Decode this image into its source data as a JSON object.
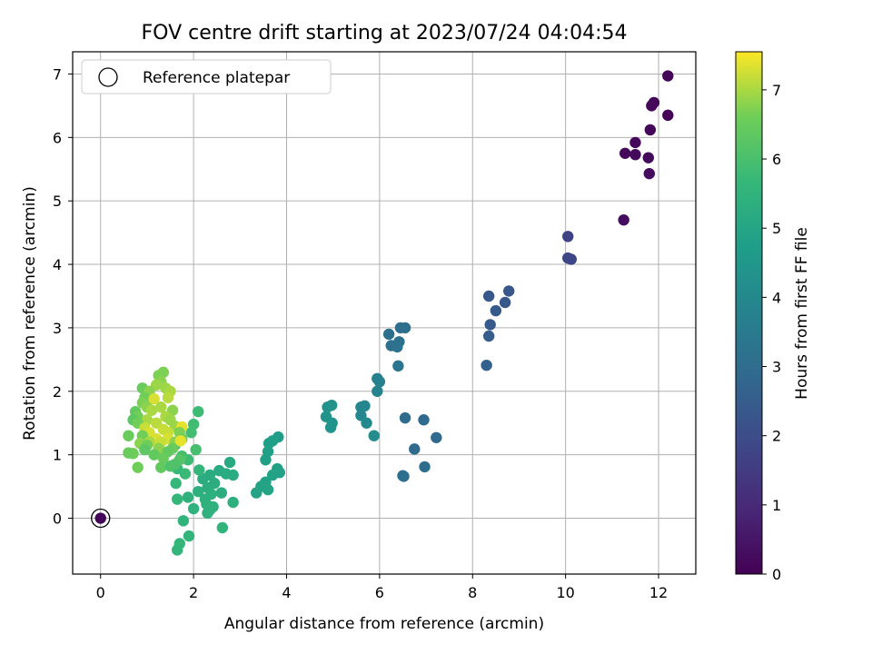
{
  "chart_data": {
    "type": "scatter",
    "title": "FOV centre drift starting at 2023/07/24 04:04:54",
    "xlabel": "Angular distance from reference (arcmin)",
    "ylabel": "Rotation from reference (arcmin)",
    "xlim": [
      -0.6,
      12.8
    ],
    "ylim": [
      -0.88,
      7.35
    ],
    "xticks": [
      0,
      2,
      4,
      6,
      8,
      10,
      12
    ],
    "yticks": [
      0,
      1,
      2,
      3,
      4,
      5,
      6,
      7
    ],
    "grid": true,
    "legend": {
      "placement": "upper-left",
      "label": "Reference platepar"
    },
    "colorbar": {
      "label": "Hours from first FF file",
      "colormap": "viridis",
      "range": [
        0,
        7.55
      ],
      "ticks": [
        0,
        1,
        2,
        3,
        4,
        5,
        6,
        7
      ]
    },
    "reference_point": {
      "x": 0,
      "y": 0,
      "t": 0.1
    },
    "points": [
      [
        12.2,
        6.97,
        0.1
      ],
      [
        11.9,
        6.55,
        0.1
      ],
      [
        11.85,
        6.5,
        0.15
      ],
      [
        12.2,
        6.35,
        0.1
      ],
      [
        11.82,
        6.12,
        0.15
      ],
      [
        11.5,
        5.92,
        0.2
      ],
      [
        11.28,
        5.75,
        0.2
      ],
      [
        11.5,
        5.73,
        0.2
      ],
      [
        11.78,
        5.68,
        0.2
      ],
      [
        11.8,
        5.43,
        0.25
      ],
      [
        11.25,
        4.7,
        0.3
      ],
      [
        10.05,
        4.44,
        1.7
      ],
      [
        10.05,
        4.1,
        1.8
      ],
      [
        10.12,
        4.08,
        1.8
      ],
      [
        8.78,
        3.58,
        2.3
      ],
      [
        8.35,
        3.5,
        2.35
      ],
      [
        8.7,
        3.4,
        2.35
      ],
      [
        8.5,
        3.27,
        2.4
      ],
      [
        8.38,
        3.05,
        2.4
      ],
      [
        8.35,
        2.87,
        2.5
      ],
      [
        8.3,
        2.41,
        2.6
      ],
      [
        6.45,
        3.0,
        3.05
      ],
      [
        6.55,
        3.0,
        3.1
      ],
      [
        6.2,
        2.9,
        3.1
      ],
      [
        6.42,
        2.78,
        3.15
      ],
      [
        6.25,
        2.72,
        3.15
      ],
      [
        6.38,
        2.7,
        3.2
      ],
      [
        6.4,
        2.4,
        3.3
      ],
      [
        6.55,
        1.58,
        3.0
      ],
      [
        6.95,
        1.55,
        2.9
      ],
      [
        7.22,
        1.27,
        2.9
      ],
      [
        6.75,
        1.09,
        2.95
      ],
      [
        6.97,
        0.81,
        3.0
      ],
      [
        6.5,
        0.67,
        3.05
      ],
      [
        6.52,
        0.66,
        3.05
      ],
      [
        5.95,
        2.2,
        3.7
      ],
      [
        6.0,
        2.15,
        3.75
      ],
      [
        5.95,
        2.0,
        3.8
      ],
      [
        5.6,
        1.75,
        3.9
      ],
      [
        5.68,
        1.77,
        3.9
      ],
      [
        5.6,
        1.62,
        3.95
      ],
      [
        5.72,
        1.5,
        4.0
      ],
      [
        5.88,
        1.3,
        4.1
      ],
      [
        4.97,
        1.78,
        4.3
      ],
      [
        4.88,
        1.75,
        4.3
      ],
      [
        4.85,
        1.6,
        4.35
      ],
      [
        4.98,
        1.5,
        4.4
      ],
      [
        4.95,
        1.43,
        4.4
      ],
      [
        3.82,
        1.28,
        4.7
      ],
      [
        3.7,
        1.22,
        4.75
      ],
      [
        3.62,
        1.18,
        4.75
      ],
      [
        3.6,
        1.05,
        4.8
      ],
      [
        3.55,
        0.92,
        4.8
      ],
      [
        3.8,
        0.78,
        4.85
      ],
      [
        3.85,
        0.72,
        4.85
      ],
      [
        3.7,
        0.68,
        4.9
      ],
      [
        3.55,
        0.57,
        4.9
      ],
      [
        3.45,
        0.5,
        4.9
      ],
      [
        3.6,
        0.45,
        4.95
      ],
      [
        3.35,
        0.4,
        4.95
      ],
      [
        2.78,
        0.88,
        5.15
      ],
      [
        2.55,
        0.75,
        5.2
      ],
      [
        2.7,
        0.7,
        5.2
      ],
      [
        2.85,
        0.68,
        5.2
      ],
      [
        2.35,
        0.68,
        5.25
      ],
      [
        2.2,
        0.62,
        5.25
      ],
      [
        2.45,
        0.55,
        5.3
      ],
      [
        2.3,
        0.48,
        5.3
      ],
      [
        2.6,
        0.4,
        5.3
      ],
      [
        2.1,
        0.42,
        5.35
      ],
      [
        2.38,
        0.38,
        5.35
      ],
      [
        2.25,
        0.3,
        5.35
      ],
      [
        1.88,
        0.33,
        5.4
      ],
      [
        2.28,
        0.22,
        5.4
      ],
      [
        2.42,
        0.18,
        5.4
      ],
      [
        2.0,
        0.15,
        5.45
      ],
      [
        2.35,
        0.13,
        5.45
      ],
      [
        2.3,
        0.08,
        5.45
      ],
      [
        2.85,
        0.25,
        5.35
      ],
      [
        2.62,
        -0.15,
        5.5
      ],
      [
        1.78,
        -0.04,
        5.5
      ],
      [
        1.9,
        -0.28,
        5.55
      ],
      [
        1.7,
        -0.4,
        5.6
      ],
      [
        1.65,
        -0.5,
        5.6
      ],
      [
        2.1,
        1.68,
        5.8
      ],
      [
        2.0,
        1.48,
        5.85
      ],
      [
        1.95,
        1.35,
        5.9
      ],
      [
        2.05,
        1.08,
        5.95
      ],
      [
        2.12,
        0.76,
        5.6
      ],
      [
        1.88,
        0.92,
        5.8
      ],
      [
        1.82,
        0.7,
        5.75
      ],
      [
        1.65,
        0.78,
        5.7
      ],
      [
        1.62,
        0.55,
        5.65
      ],
      [
        1.65,
        0.3,
        5.6
      ],
      [
        1.75,
        0.98,
        6.0
      ],
      [
        1.6,
        1.15,
        6.0
      ],
      [
        1.25,
        2.25,
        6.7
      ],
      [
        1.35,
        2.3,
        6.7
      ],
      [
        1.3,
        2.15,
        6.8
      ],
      [
        1.2,
        2.1,
        6.9
      ],
      [
        1.4,
        2.05,
        6.9
      ],
      [
        0.9,
        2.05,
        6.5
      ],
      [
        1.05,
        2.0,
        6.8
      ],
      [
        1.5,
        2.0,
        7.0
      ],
      [
        1.45,
        1.9,
        7.1
      ],
      [
        0.95,
        1.9,
        6.6
      ],
      [
        1.15,
        1.88,
        7.3
      ],
      [
        0.9,
        1.82,
        6.7
      ],
      [
        1.0,
        1.75,
        6.8
      ],
      [
        1.3,
        1.75,
        7.0
      ],
      [
        0.75,
        1.68,
        6.4
      ],
      [
        1.1,
        1.7,
        7.0
      ],
      [
        1.55,
        1.7,
        6.8
      ],
      [
        0.8,
        1.6,
        6.6
      ],
      [
        1.4,
        1.6,
        7.0
      ],
      [
        0.7,
        1.55,
        6.3
      ],
      [
        1.0,
        1.55,
        7.0
      ],
      [
        1.5,
        1.55,
        6.9
      ],
      [
        0.8,
        1.5,
        6.6
      ],
      [
        1.2,
        1.5,
        7.1
      ],
      [
        1.6,
        1.45,
        6.9
      ],
      [
        1.75,
        1.44,
        7.4
      ],
      [
        0.95,
        1.42,
        7.2
      ],
      [
        1.35,
        1.4,
        7.2
      ],
      [
        1.05,
        1.35,
        7.3
      ],
      [
        1.45,
        1.35,
        7.2
      ],
      [
        1.7,
        1.35,
        6.7
      ],
      [
        0.6,
        1.3,
        6.5
      ],
      [
        0.9,
        1.3,
        6.6
      ],
      [
        1.2,
        1.25,
        7.3
      ],
      [
        1.45,
        1.25,
        7.3
      ],
      [
        1.75,
        1.25,
        6.6
      ],
      [
        1.05,
        1.2,
        7.0
      ],
      [
        1.3,
        1.2,
        7.2
      ],
      [
        1.6,
        1.2,
        6.8
      ],
      [
        0.85,
        1.18,
        6.8
      ],
      [
        1.0,
        1.15,
        6.6
      ],
      [
        1.72,
        1.22,
        7.4
      ],
      [
        1.55,
        1.1,
        6.5
      ],
      [
        1.25,
        1.1,
        6.8
      ],
      [
        0.95,
        1.08,
        6.3
      ],
      [
        1.45,
        1.05,
        6.4
      ],
      [
        0.7,
        1.02,
        6.6
      ],
      [
        0.6,
        1.03,
        6.5
      ],
      [
        1.15,
        1.0,
        6.4
      ],
      [
        1.35,
        0.95,
        6.5
      ],
      [
        1.7,
        0.92,
        6.2
      ],
      [
        1.6,
        0.85,
        6.1
      ],
      [
        1.3,
        0.8,
        6.4
      ],
      [
        0.8,
        0.8,
        6.6
      ],
      [
        1.5,
        0.82,
        6.1
      ]
    ]
  }
}
